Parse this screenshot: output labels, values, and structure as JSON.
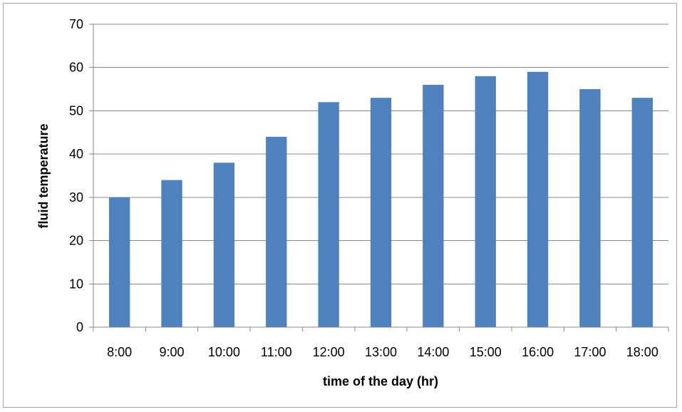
{
  "chart_data": {
    "type": "bar",
    "title": "",
    "xlabel": "time of the day (hr)",
    "ylabel": "fluid temperature",
    "categories": [
      "8:00",
      "9:00",
      "10:00",
      "11:00",
      "12:00",
      "13:00",
      "14:00",
      "15:00",
      "16:00",
      "17:00",
      "18:00"
    ],
    "values": [
      30,
      34,
      38,
      44,
      52,
      53,
      56,
      58,
      59,
      55,
      53
    ],
    "ylim": [
      0,
      70
    ],
    "yticks": [
      0,
      10,
      20,
      30,
      40,
      50,
      60,
      70
    ],
    "grid": true,
    "legend": "none",
    "colors": {
      "bar": "#4f81bd",
      "grid": "#888888",
      "axis": "#888888",
      "frame": "#a6a6a6"
    }
  }
}
